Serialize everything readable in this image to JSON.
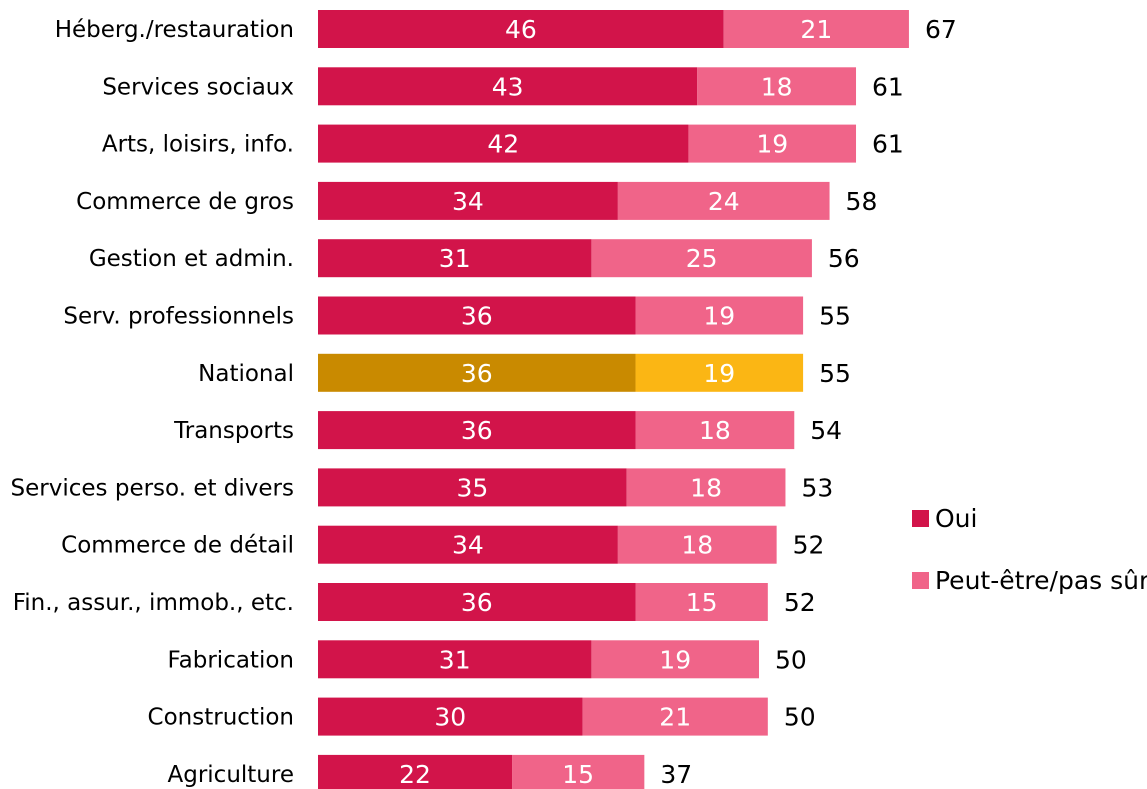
{
  "colors": {
    "oui": "#D2144A",
    "peut_etre": "#F06489",
    "national_oui": "#C98A00",
    "national_peut_etre": "#FBB614"
  },
  "legend": {
    "items": [
      {
        "label": "Oui",
        "color": "#D2144A"
      },
      {
        "label": "Peut-être/pas sûr",
        "color": "#F06489"
      }
    ]
  },
  "chart_data": {
    "type": "bar",
    "orientation": "horizontal",
    "stacked": true,
    "highlight_category": "National",
    "categories": [
      "Héberg./restauration",
      "Services sociaux",
      "Arts, loisirs, info.",
      "Commerce de gros",
      "Gestion et admin.",
      "Serv. professionnels",
      "National",
      "Transports",
      "Services perso. et divers",
      "Commerce de détail",
      "Fin., assur., immob., etc.",
      "Fabrication",
      "Construction",
      "Agriculture"
    ],
    "series": [
      {
        "name": "Oui",
        "values": [
          46,
          43,
          42,
          34,
          31,
          36,
          36,
          36,
          35,
          34,
          36,
          31,
          30,
          22
        ]
      },
      {
        "name": "Peut-être/pas sûr",
        "values": [
          21,
          18,
          19,
          24,
          25,
          19,
          19,
          18,
          18,
          18,
          15,
          19,
          21,
          15
        ]
      }
    ],
    "totals": [
      67,
      61,
      61,
      58,
      56,
      55,
      55,
      54,
      53,
      52,
      52,
      50,
      50,
      37
    ],
    "xlim": [
      0,
      67
    ],
    "legend_position": "right",
    "grid": false
  }
}
